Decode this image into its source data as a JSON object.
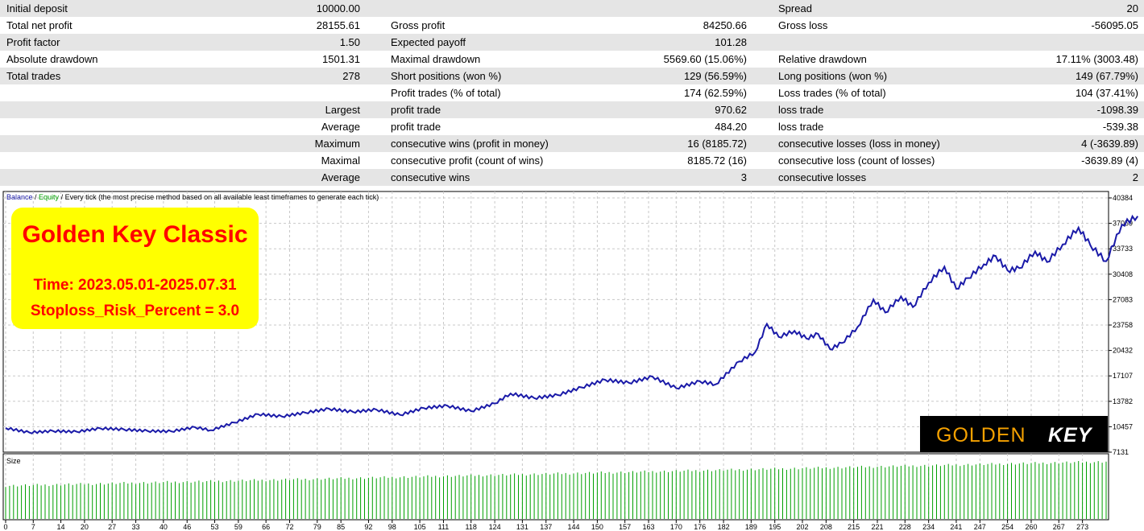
{
  "report": {
    "rows": [
      [
        "Initial deposit",
        "10000.00",
        "",
        "",
        "Spread",
        "20"
      ],
      [
        "Total net profit",
        "28155.61",
        "Gross profit",
        "84250.66",
        "Gross loss",
        "-56095.05"
      ],
      [
        "Profit factor",
        "1.50",
        "Expected payoff",
        "101.28",
        "",
        ""
      ],
      [
        "Absolute drawdown",
        "1501.31",
        "Maximal drawdown",
        "5569.60 (15.06%)",
        "Relative drawdown",
        "17.11% (3003.48)"
      ],
      [
        "Total trades",
        "278",
        "Short positions (won %)",
        "129 (56.59%)",
        "Long positions (won %)",
        "149 (67.79%)"
      ],
      [
        "",
        "",
        "Profit trades (% of total)",
        "174 (62.59%)",
        "Loss trades (% of total)",
        "104 (37.41%)"
      ],
      [
        "",
        "Largest",
        "profit trade",
        "970.62",
        "loss trade",
        "-1098.39"
      ],
      [
        "",
        "Average",
        "profit trade",
        "484.20",
        "loss trade",
        "-539.38"
      ],
      [
        "",
        "Maximum",
        "consecutive wins (profit in money)",
        "16 (8185.72)",
        "consecutive losses (loss in money)",
        "4 (-3639.89)"
      ],
      [
        "",
        "Maximal",
        "consecutive profit (count of wins)",
        "8185.72 (16)",
        "consecutive loss (count of losses)",
        "-3639.89 (4)"
      ],
      [
        "",
        "Average",
        "consecutive wins",
        "3",
        "consecutive losses",
        "2"
      ]
    ]
  },
  "chart_header": {
    "balance": "Balance",
    "sep": " / ",
    "equity": "Equity",
    "rest": " / Every tick (the most precise method based on all available least timeframes to generate each tick)"
  },
  "promo": {
    "title": "Golden Key Classic",
    "time": "Time: 2023.05.01-2025.07.31",
    "risk": "Stoploss_Risk_Percent = 3.0"
  },
  "logo": {
    "part1": "GOLDEN",
    "part2": "KEY"
  },
  "size_label": "Size",
  "colors": {
    "balance_line": "#1a1aa8",
    "equity_text": "#00a000",
    "size_bars": "#00a000",
    "promo_bg": "#ffff00",
    "promo_text": "#ff0000",
    "logo_gold": "#f5a100"
  },
  "chart_data": {
    "type": "line",
    "x_ticks": [
      0,
      7,
      14,
      20,
      27,
      33,
      40,
      46,
      53,
      59,
      66,
      72,
      79,
      85,
      92,
      98,
      105,
      111,
      118,
      124,
      131,
      137,
      144,
      150,
      157,
      163,
      170,
      176,
      182,
      189,
      195,
      202,
      208,
      215,
      221,
      228,
      234,
      241,
      247,
      254,
      260,
      267,
      273
    ],
    "y_ticks": [
      40384,
      37059,
      33733,
      30408,
      27083,
      23758,
      20432,
      17107,
      13782,
      10457,
      7131
    ],
    "ylim": [
      7131,
      40384
    ],
    "xlim": [
      0,
      279
    ],
    "series": [
      {
        "name": "Balance",
        "points": [
          [
            0,
            10300
          ],
          [
            6,
            9700
          ],
          [
            12,
            9900
          ],
          [
            18,
            9800
          ],
          [
            24,
            10250
          ],
          [
            30,
            10100
          ],
          [
            36,
            9900
          ],
          [
            42,
            9850
          ],
          [
            48,
            10400
          ],
          [
            52,
            10000
          ],
          [
            58,
            11000
          ],
          [
            64,
            12100
          ],
          [
            70,
            11800
          ],
          [
            76,
            12300
          ],
          [
            82,
            12800
          ],
          [
            88,
            12400
          ],
          [
            94,
            12700
          ],
          [
            100,
            12000
          ],
          [
            106,
            12900
          ],
          [
            112,
            13200
          ],
          [
            118,
            12500
          ],
          [
            124,
            13500
          ],
          [
            128,
            14800
          ],
          [
            134,
            14200
          ],
          [
            140,
            14600
          ],
          [
            146,
            15600
          ],
          [
            152,
            16600
          ],
          [
            158,
            16200
          ],
          [
            164,
            17000
          ],
          [
            170,
            15500
          ],
          [
            176,
            16400
          ],
          [
            180,
            16000
          ],
          [
            186,
            19000
          ],
          [
            190,
            20200
          ],
          [
            193,
            23900
          ],
          [
            196,
            22200
          ],
          [
            200,
            23000
          ],
          [
            203,
            22000
          ],
          [
            206,
            22600
          ],
          [
            209,
            20600
          ],
          [
            212,
            21400
          ],
          [
            216,
            23500
          ],
          [
            220,
            27100
          ],
          [
            223,
            25400
          ],
          [
            227,
            27500
          ],
          [
            230,
            26100
          ],
          [
            234,
            29300
          ],
          [
            238,
            31400
          ],
          [
            241,
            28500
          ],
          [
            244,
            29900
          ],
          [
            248,
            31700
          ],
          [
            251,
            32800
          ],
          [
            254,
            30900
          ],
          [
            257,
            31200
          ],
          [
            261,
            33400
          ],
          [
            264,
            32000
          ],
          [
            268,
            34300
          ],
          [
            272,
            36500
          ],
          [
            275,
            34200
          ],
          [
            279,
            32100
          ],
          [
            283,
            36900
          ],
          [
            287,
            38000
          ]
        ]
      }
    ],
    "size_panel": {
      "label": "Size",
      "ylim": [
        0,
        1
      ],
      "start": 0.55,
      "end": 0.95
    }
  }
}
